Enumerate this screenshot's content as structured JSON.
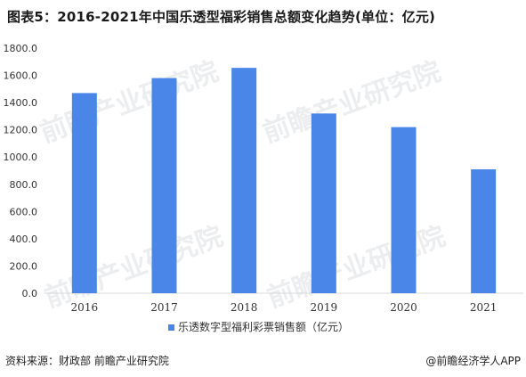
{
  "header": {
    "title": "图表5：2016-2021年中国乐透型福彩销售总额变化趋势(单位：亿元)"
  },
  "footer": {
    "source": "资料来源：财政部 前瞻产业研究院",
    "credit": "@前瞻经济学人APP"
  },
  "watermark": {
    "text": "前瞻产业研究院"
  },
  "colors": {
    "bar": "#4a86e8",
    "axis": "#d9d9d9",
    "text": "#333333"
  },
  "chart_data": {
    "type": "bar",
    "categories": [
      "2016",
      "2017",
      "2018",
      "2019",
      "2020",
      "2021"
    ],
    "series": [
      {
        "name": "乐透数字型福利彩票销售额（亿元）",
        "values": [
          1470,
          1580,
          1655,
          1320,
          1220,
          910
        ]
      }
    ],
    "yticks": [
      "0.0",
      "200.0",
      "400.0",
      "600.0",
      "800.0",
      "1000.0",
      "1200.0",
      "1400.0",
      "1600.0",
      "1800.0"
    ],
    "ylim": [
      0,
      1800
    ],
    "grid": false,
    "legend": "bottom-center"
  }
}
